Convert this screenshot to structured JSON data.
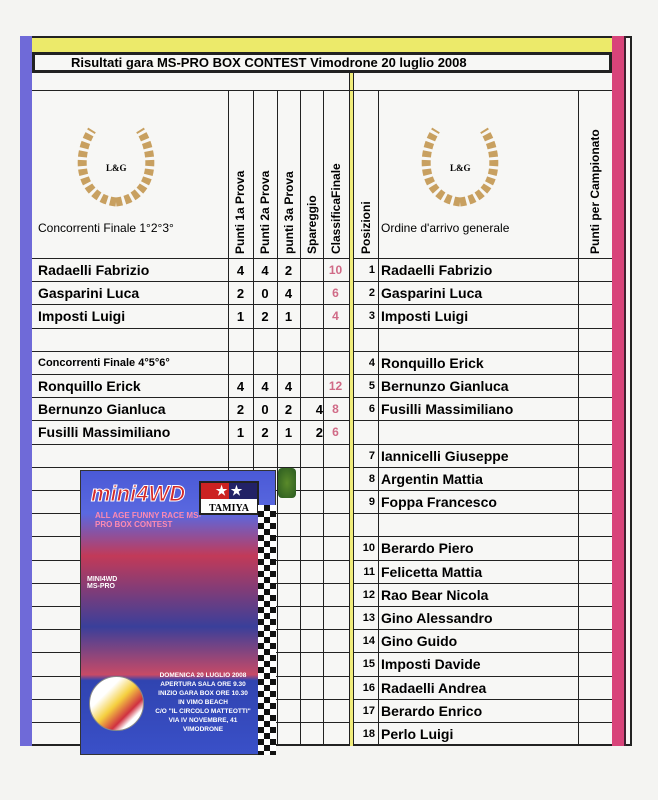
{
  "title": "Risultati gara MS-PRO BOX CONTEST Vimodrone 20 luglio 2008",
  "logo_text": "L&G",
  "headers": {
    "left_group": "Concorrenti Finale 1°2°3°",
    "p1": "Punti 1a Prova",
    "p2": "Punti 2a Prova",
    "p3": "punti 3a Prova",
    "spareggio": "Spareggio",
    "classifica": "ClassificaFinale",
    "posizioni": "Posizioni",
    "ordine": "Ordine d'arrivo generale",
    "campionato": "Punti per Campionato"
  },
  "rows": [
    {
      "left": {
        "name": "Radaelli Fabrizio",
        "p1": "4",
        "p2": "4",
        "p3": "2",
        "spar": "",
        "fin": "10"
      },
      "right": {
        "pos": "1",
        "name": "Radaelli Fabrizio"
      }
    },
    {
      "left": {
        "name": "Gasparini Luca",
        "p1": "2",
        "p2": "0",
        "p3": "4",
        "spar": "",
        "fin": "6"
      },
      "right": {
        "pos": "2",
        "name": "Gasparini Luca"
      }
    },
    {
      "left": {
        "name": "Imposti Luigi",
        "p1": "1",
        "p2": "2",
        "p3": "1",
        "spar": "",
        "fin": "4"
      },
      "right": {
        "pos": "3",
        "name": "Imposti Luigi"
      }
    },
    {
      "left": {},
      "right": {}
    },
    {
      "left": {
        "subhead": "Concorrenti  Finale 4°5°6°"
      },
      "right": {
        "pos": "4",
        "name": "Ronquillo Erick"
      }
    },
    {
      "left": {
        "name": "Ronquillo Erick",
        "p1": "4",
        "p2": "4",
        "p3": "4",
        "spar": "",
        "fin": "12"
      },
      "right": {
        "pos": "5",
        "name": "Bernunzo Gianluca"
      }
    },
    {
      "left": {
        "name": "Bernunzo Gianluca",
        "p1": "2",
        "p2": "0",
        "p3": "2",
        "spar": "4",
        "fin": "8"
      },
      "right": {
        "pos": "6",
        "name": "Fusilli Massimiliano"
      }
    },
    {
      "left": {
        "name": "Fusilli Massimiliano",
        "p1": "1",
        "p2": "2",
        "p3": "1",
        "spar": "2",
        "fin": "6"
      },
      "right": {}
    },
    {
      "left": {},
      "right": {
        "pos": "7",
        "name": "Iannicelli Giuseppe"
      }
    },
    {
      "left": {},
      "right": {
        "pos": "8",
        "name": "Argentin Mattia"
      }
    },
    {
      "left": {},
      "right": {
        "pos": "9",
        "name": "Foppa Francesco"
      }
    },
    {
      "left": {},
      "right": {}
    },
    {
      "left": {},
      "right": {
        "pos": "10",
        "name": "Berardo Piero"
      }
    },
    {
      "left": {},
      "right": {
        "pos": "11",
        "name": "Felicetta Mattia"
      }
    },
    {
      "left": {},
      "right": {
        "pos": "12",
        "name": "Rao Bear Nicola"
      }
    },
    {
      "left": {},
      "right": {
        "pos": "13",
        "name": "Gino Alessandro"
      }
    },
    {
      "left": {},
      "right": {
        "pos": "14",
        "name": "Gino Guido"
      }
    },
    {
      "left": {},
      "right": {
        "pos": "15",
        "name": "Imposti Davide"
      }
    },
    {
      "left": {},
      "right": {
        "pos": "16",
        "name": "Radaelli Andrea"
      }
    },
    {
      "left": {},
      "right": {
        "pos": "17",
        "name": "Berardo Enrico"
      }
    },
    {
      "left": {},
      "right": {
        "pos": "18",
        "name": "Perlo Luigi"
      }
    }
  ],
  "poster": {
    "brand": "mini4WD",
    "maker": "TAMIYA",
    "tagline": "ALL AGE FUNNY RACE MS-PRO BOX CONTEST",
    "side": "MINI4WD MS-PRO",
    "event_lines": [
      "DOMENICA 20 LUGLIO 2008",
      "APERTURA SALA ORE 9.30",
      "INIZIO GARA BOX ORE 10.30",
      "IN VIMO BEACH",
      "C/O \"IL CIRCOLO MATTEOTTI\"",
      "VIA IV NOVEMBRE, 41",
      "VIMODRONE"
    ]
  },
  "colors": {
    "left_bar": "#6f6ad8",
    "right_bar": "#d8447a",
    "top_bar": "#ecea6a",
    "final_score": "#d06a86"
  }
}
